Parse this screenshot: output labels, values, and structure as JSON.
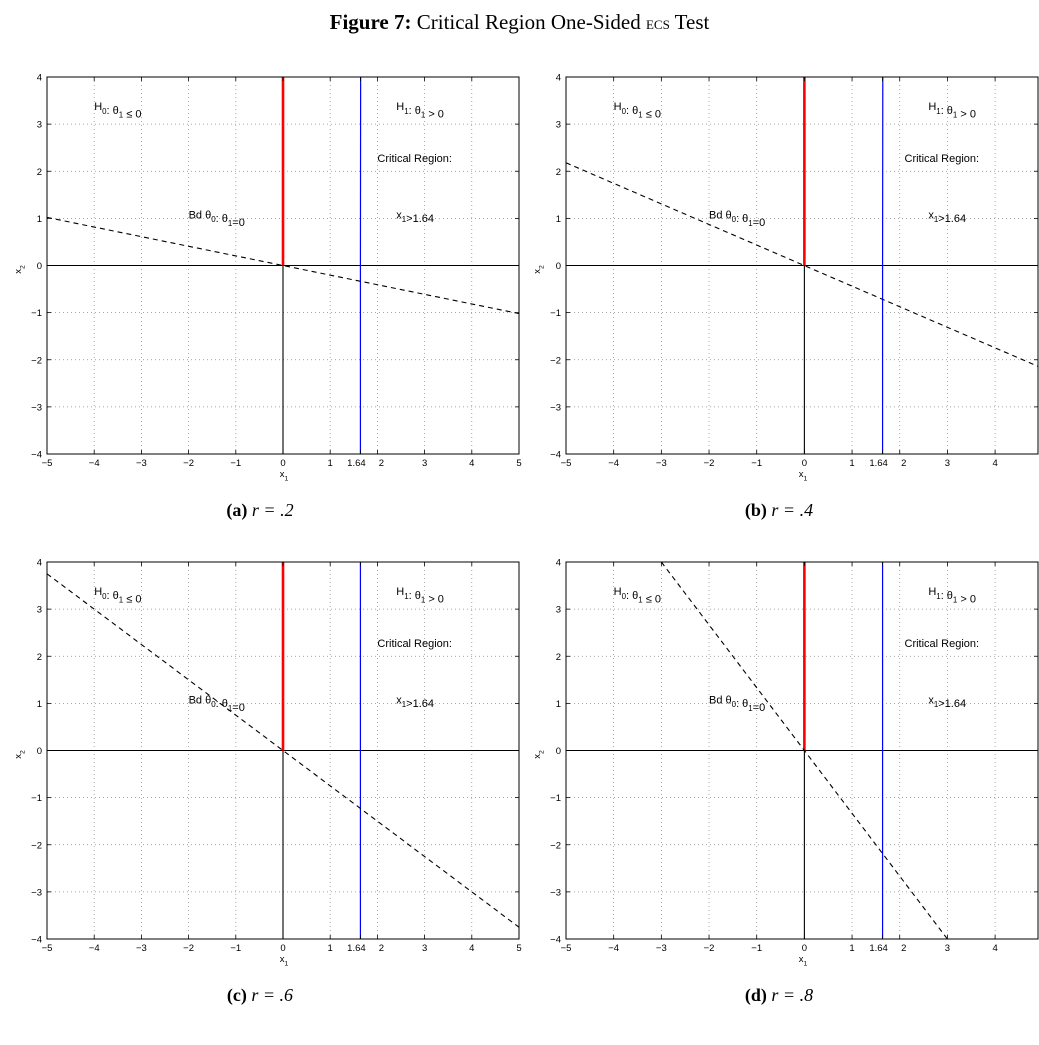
{
  "figure": {
    "label": "Figure 7:",
    "title_main": "Critical Region One-Sided ",
    "title_sc": "ecs",
    "title_end": " Test"
  },
  "panels": [
    {
      "letter": "(a)",
      "r_text": "r = .2"
    },
    {
      "letter": "(b)",
      "r_text": "r = .4"
    },
    {
      "letter": "(c)",
      "r_text": "r = .6"
    },
    {
      "letter": "(d)",
      "r_text": "r = .8"
    }
  ],
  "chart_data": [
    {
      "type": "line",
      "xlabel": "x1",
      "ylabel": "x2",
      "xlim": [
        -5,
        5
      ],
      "ylim": [
        -4,
        4
      ],
      "xticks": [
        -5,
        -4,
        -3,
        -2,
        -1,
        0,
        1,
        1.64,
        2,
        3,
        4,
        5
      ],
      "xtick_labels": [
        "−5",
        "−4",
        "−3",
        "−2",
        "−1",
        "0",
        "1",
        "1.64",
        "2",
        "3",
        "4",
        "5"
      ],
      "yticks": [
        -4,
        -3,
        -2,
        -1,
        0,
        1,
        2,
        3,
        4
      ],
      "ytick_labels": [
        "−4",
        "−3",
        "−2",
        "−1",
        "0",
        "1",
        "2",
        "3",
        "4"
      ],
      "grid": true,
      "series": [
        {
          "style": "solid-red-thick",
          "color": "#ff0000",
          "x": [
            0,
            0
          ],
          "y": [
            0,
            4
          ]
        },
        {
          "style": "solid-blue",
          "color": "#0000ff",
          "x": [
            1.645,
            1.64,
            1.64
          ],
          "y": [
            4,
            0,
            -4
          ]
        },
        {
          "style": "dashed-black",
          "color": "#000000",
          "x": [
            -5,
            5
          ],
          "y": [
            1.02,
            -1.02
          ]
        }
      ],
      "annotations": [
        {
          "text": "H0: θ1 ≤ 0",
          "x": -4.0,
          "y": 3.3
        },
        {
          "text": "Bd θ0: θ1=0",
          "x": -2.0,
          "y": 1.0
        },
        {
          "text": "H1: θ1 > 0",
          "x": 2.4,
          "y": 3.3
        },
        {
          "text": "Critical Region:",
          "x": 2.0,
          "y": 2.2
        },
        {
          "text": "x1>1.64",
          "x": 2.4,
          "y": 1.0
        }
      ]
    },
    {
      "type": "line",
      "xlabel": "x1",
      "ylabel": "x2",
      "xlim": [
        -5,
        4.9
      ],
      "ylim": [
        -4,
        4
      ],
      "xticks": [
        -5,
        -4,
        -3,
        -2,
        -1,
        0,
        1,
        1.64,
        2,
        3,
        4
      ],
      "xtick_labels": [
        "−5",
        "−4",
        "−3",
        "−2",
        "−1",
        "0",
        "1",
        "1.64",
        "2",
        "3",
        "4"
      ],
      "yticks": [
        -4,
        -3,
        -2,
        -1,
        0,
        1,
        2,
        3,
        4
      ],
      "ytick_labels": [
        "−4",
        "−3",
        "−2",
        "−1",
        "0",
        "1",
        "2",
        "3",
        "4"
      ],
      "grid": true,
      "series": [
        {
          "style": "solid-red-thick",
          "color": "#ff0000",
          "x": [
            0,
            0
          ],
          "y": [
            0,
            4
          ]
        },
        {
          "style": "solid-blue",
          "color": "#0000ff",
          "x": [
            1.645,
            1.64,
            1.64
          ],
          "y": [
            4,
            0,
            -4
          ]
        },
        {
          "style": "dashed-black",
          "color": "#000000",
          "x": [
            -5,
            4.9
          ],
          "y": [
            2.18,
            -2.14
          ]
        }
      ],
      "annotations": [
        {
          "text": "H0: θ1 ≤ 0",
          "x": -4.0,
          "y": 3.3
        },
        {
          "text": "Bd θ0: θ1=0",
          "x": -2.0,
          "y": 1.0
        },
        {
          "text": "H1: θ1 > 0",
          "x": 2.6,
          "y": 3.3
        },
        {
          "text": "Critical Region:",
          "x": 2.1,
          "y": 2.2
        },
        {
          "text": "x1>1.64",
          "x": 2.6,
          "y": 1.0
        }
      ]
    },
    {
      "type": "line",
      "xlabel": "x1",
      "ylabel": "x2",
      "xlim": [
        -5,
        5
      ],
      "ylim": [
        -4,
        4
      ],
      "xticks": [
        -5,
        -4,
        -3,
        -2,
        -1,
        0,
        1,
        1.64,
        2,
        3,
        4,
        5
      ],
      "xtick_labels": [
        "−5",
        "−4",
        "−3",
        "−2",
        "−1",
        "0",
        "1",
        "1.64",
        "2",
        "3",
        "4",
        "5"
      ],
      "yticks": [
        -4,
        -3,
        -2,
        -1,
        0,
        1,
        2,
        3,
        4
      ],
      "ytick_labels": [
        "−4",
        "−3",
        "−2",
        "−1",
        "0",
        "1",
        "2",
        "3",
        "4"
      ],
      "grid": true,
      "series": [
        {
          "style": "solid-red-thick",
          "color": "#ff0000",
          "x": [
            0,
            0
          ],
          "y": [
            0,
            4
          ]
        },
        {
          "style": "solid-blue",
          "color": "#0000ff",
          "x": [
            1.64,
            1.64
          ],
          "y": [
            4,
            -4
          ]
        },
        {
          "style": "dashed-black",
          "color": "#000000",
          "x": [
            -5,
            5
          ],
          "y": [
            3.75,
            -3.75
          ]
        }
      ],
      "annotations": [
        {
          "text": "H0: θ1 ≤ 0",
          "x": -4.0,
          "y": 3.3
        },
        {
          "text": "Bd θ0: θ1=0",
          "x": -2.0,
          "y": 1.0
        },
        {
          "text": "H1: θ1 > 0",
          "x": 2.4,
          "y": 3.3
        },
        {
          "text": "Critical Region:",
          "x": 2.0,
          "y": 2.2
        },
        {
          "text": "x1>1.64",
          "x": 2.4,
          "y": 1.0
        }
      ]
    },
    {
      "type": "line",
      "xlabel": "x1",
      "ylabel": "x2",
      "xlim": [
        -5,
        4.9
      ],
      "ylim": [
        -4,
        4
      ],
      "xticks": [
        -5,
        -4,
        -3,
        -2,
        -1,
        0,
        1,
        1.64,
        2,
        3,
        4
      ],
      "xtick_labels": [
        "−5",
        "−4",
        "−3",
        "−2",
        "−1",
        "0",
        "1",
        "1.64",
        "2",
        "3",
        "4"
      ],
      "yticks": [
        -4,
        -3,
        -2,
        -1,
        0,
        1,
        2,
        3,
        4
      ],
      "ytick_labels": [
        "−4",
        "−3",
        "−2",
        "−1",
        "0",
        "1",
        "2",
        "3",
        "4"
      ],
      "grid": true,
      "series": [
        {
          "style": "solid-red-thick",
          "color": "#ff0000",
          "x": [
            0,
            0
          ],
          "y": [
            0,
            4
          ]
        },
        {
          "style": "solid-blue",
          "color": "#0000ff",
          "x": [
            1.64,
            1.64
          ],
          "y": [
            4,
            -4
          ]
        },
        {
          "style": "dashed-black",
          "color": "#000000",
          "x": [
            -3,
            3
          ],
          "y": [
            4,
            -4
          ]
        }
      ],
      "annotations": [
        {
          "text": "H0: θ1 ≤ 0",
          "x": -4.0,
          "y": 3.3
        },
        {
          "text": "Bd θ0: θ1=0",
          "x": -2.0,
          "y": 1.0
        },
        {
          "text": "H1: θ1 > 0",
          "x": 2.6,
          "y": 3.3
        },
        {
          "text": "Critical Region:",
          "x": 2.1,
          "y": 2.2
        },
        {
          "text": "x1>1.64",
          "x": 2.6,
          "y": 1.0
        }
      ]
    }
  ]
}
